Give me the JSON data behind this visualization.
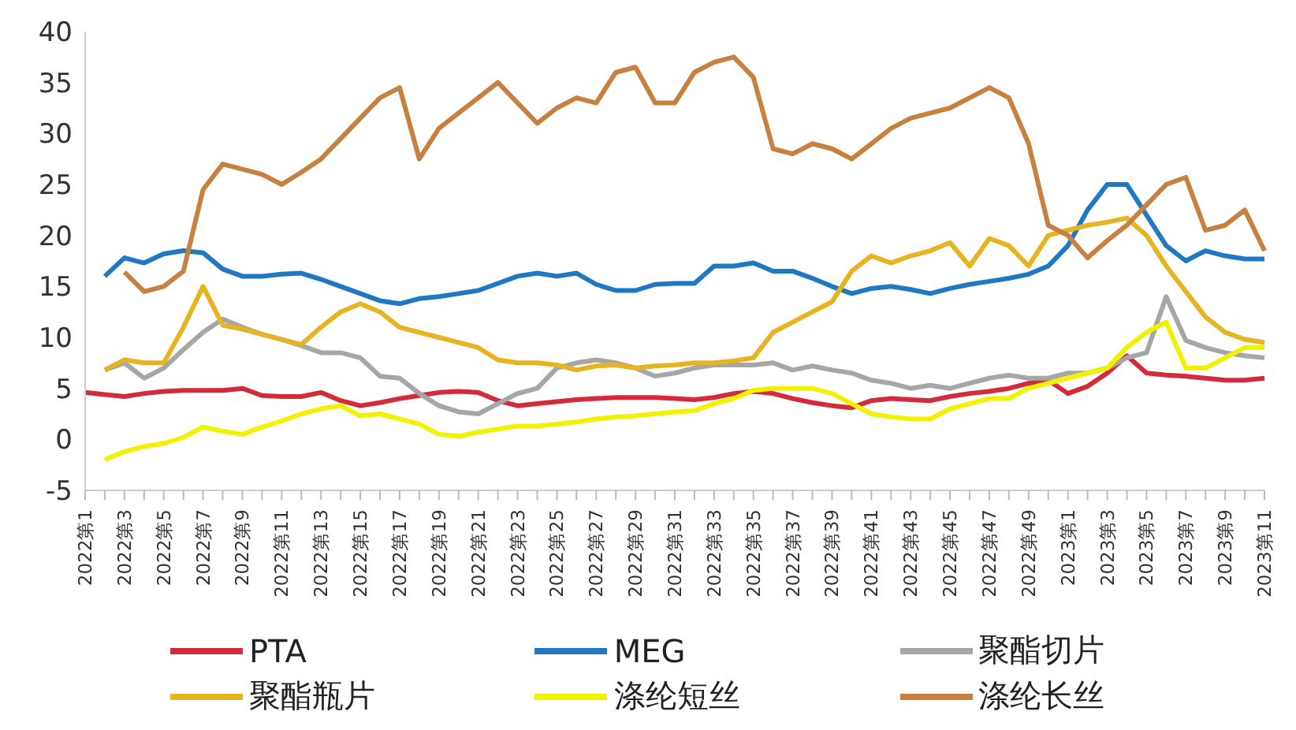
{
  "chart_data": {
    "type": "line",
    "categories": [
      "2022第1",
      null,
      "2022第3",
      null,
      "2022第5",
      null,
      "2022第7",
      null,
      "2022第9",
      null,
      "2022第11",
      null,
      "2022第13",
      null,
      "2022第15",
      null,
      "2022第17",
      null,
      "2022第19",
      null,
      "2022第21",
      null,
      "2022第23",
      null,
      "2022第25",
      null,
      "2022第27",
      null,
      "2022第29",
      null,
      "2022第31",
      null,
      "2022第33",
      null,
      "2022第35",
      null,
      "2022第37",
      null,
      "2022第39",
      null,
      "2022第41",
      null,
      "2022第43",
      null,
      "2022第45",
      null,
      "2022第47",
      null,
      "2022第49",
      null,
      "2023第1",
      null,
      "2023第3",
      null,
      "2023第5",
      null,
      "2023第7",
      null,
      "2023第9",
      null,
      "2023第11"
    ],
    "series": [
      {
        "name": "PTA",
        "color": "#d42a3a",
        "values": [
          4.6,
          4.4,
          4.2,
          4.5,
          4.7,
          4.8,
          4.8,
          4.8,
          5.0,
          4.3,
          4.2,
          4.2,
          4.6,
          3.8,
          3.3,
          3.6,
          4.0,
          4.3,
          4.6,
          4.7,
          4.6,
          3.8,
          3.3,
          3.5,
          3.7,
          3.9,
          4.0,
          4.1,
          4.1,
          4.1,
          4.0,
          3.9,
          4.1,
          4.5,
          4.7,
          4.5,
          4.0,
          3.6,
          3.3,
          3.1,
          3.8,
          4.0,
          3.9,
          3.8,
          4.2,
          4.5,
          4.7,
          5.0,
          5.5,
          5.8,
          4.5,
          5.2,
          6.5,
          8.2,
          6.5,
          6.3,
          6.2,
          6.0,
          5.8,
          5.8,
          6.0
        ]
      },
      {
        "name": "MEG",
        "color": "#1f78c1",
        "values": [
          null,
          16.0,
          17.8,
          17.3,
          18.2,
          18.5,
          18.3,
          16.7,
          16.0,
          16.0,
          16.2,
          16.3,
          15.7,
          15.0,
          14.3,
          13.6,
          13.3,
          13.8,
          14.0,
          14.3,
          14.6,
          15.3,
          16.0,
          16.3,
          16.0,
          16.3,
          15.2,
          14.6,
          14.6,
          15.2,
          15.3,
          15.3,
          17.0,
          17.0,
          17.3,
          16.5,
          16.5,
          15.8,
          15.0,
          14.3,
          14.8,
          15.0,
          14.7,
          14.3,
          14.8,
          15.2,
          15.5,
          15.8,
          16.2,
          17.0,
          19.0,
          22.5,
          25.0,
          25.0,
          22.0,
          19.0,
          17.5,
          18.5,
          18.0,
          17.7,
          17.7
        ]
      },
      {
        "name": "聚酯切片",
        "color": "#a6a6a6",
        "values": [
          null,
          6.8,
          7.5,
          6.0,
          7.0,
          8.8,
          10.5,
          11.8,
          11.0,
          10.3,
          9.8,
          9.2,
          8.5,
          8.5,
          8.0,
          6.2,
          6.0,
          4.5,
          3.3,
          2.7,
          2.5,
          3.5,
          4.5,
          5.0,
          7.0,
          7.5,
          7.8,
          7.5,
          7.0,
          6.2,
          6.5,
          7.0,
          7.3,
          7.3,
          7.3,
          7.5,
          6.8,
          7.2,
          6.8,
          6.5,
          5.8,
          5.5,
          5.0,
          5.3,
          5.0,
          5.5,
          6.0,
          6.3,
          6.0,
          6.0,
          6.5,
          6.5,
          7.0,
          8.0,
          8.5,
          14.0,
          9.7,
          9.0,
          8.5,
          8.2,
          8.0
        ]
      },
      {
        "name": "聚酯瓶片",
        "color": "#e8b321",
        "values": [
          null,
          6.8,
          7.8,
          7.5,
          7.5,
          11.0,
          15.0,
          11.2,
          10.8,
          10.3,
          9.8,
          9.3,
          11.0,
          12.5,
          13.3,
          12.5,
          11.0,
          10.5,
          10.0,
          9.5,
          9.0,
          7.8,
          7.5,
          7.5,
          7.3,
          6.8,
          7.2,
          7.3,
          7.0,
          7.2,
          7.3,
          7.5,
          7.5,
          7.7,
          8.0,
          10.5,
          11.5,
          12.5,
          13.5,
          16.5,
          18.0,
          17.3,
          18.0,
          18.5,
          19.3,
          17.0,
          19.7,
          19.0,
          17.0,
          20.0,
          20.5,
          21.0,
          21.3,
          21.7,
          20.0,
          17.0,
          14.5,
          12.0,
          10.5,
          9.8,
          9.5
        ]
      },
      {
        "name": "涤纶短丝",
        "color": "#f2f200",
        "values": [
          null,
          -2.0,
          -1.2,
          -0.7,
          -0.4,
          0.2,
          1.2,
          0.8,
          0.5,
          1.2,
          1.8,
          2.5,
          3.0,
          3.3,
          2.3,
          2.5,
          2.0,
          1.5,
          0.5,
          0.3,
          0.7,
          1.0,
          1.3,
          1.3,
          1.5,
          1.7,
          2.0,
          2.2,
          2.3,
          2.5,
          2.7,
          2.8,
          3.5,
          4.0,
          4.8,
          5.0,
          5.0,
          5.0,
          4.5,
          3.5,
          2.5,
          2.2,
          2.0,
          2.0,
          3.0,
          3.5,
          4.0,
          4.0,
          5.0,
          5.5,
          6.0,
          6.5,
          7.0,
          9.0,
          10.5,
          11.5,
          7.0,
          7.0,
          8.0,
          9.0,
          9.0
        ]
      },
      {
        "name": "涤纶长丝",
        "color": "#c8803e",
        "values": [
          null,
          null,
          16.4,
          14.5,
          15.0,
          16.5,
          24.5,
          27.0,
          26.5,
          26.0,
          25.0,
          26.2,
          27.5,
          29.5,
          31.5,
          33.5,
          34.5,
          27.5,
          30.5,
          32.0,
          33.5,
          35.0,
          33.0,
          31.0,
          32.5,
          33.5,
          33.0,
          36.0,
          36.5,
          33.0,
          33.0,
          36.0,
          37.0,
          37.5,
          35.5,
          28.5,
          28.0,
          29.0,
          28.5,
          27.5,
          29.0,
          30.5,
          31.5,
          32.0,
          32.5,
          33.5,
          34.5,
          33.5,
          29.0,
          21.0,
          20.0,
          17.8,
          19.5,
          21.0,
          23.0,
          25.0,
          25.7,
          20.5,
          21.0,
          22.5,
          18.5
        ]
      }
    ],
    "ylim": [
      -5,
      40
    ],
    "yticks": [
      -5,
      0,
      5,
      10,
      15,
      20,
      25,
      30,
      35,
      40
    ],
    "grid": false,
    "legend": "bottom",
    "marker": "none",
    "line_style": "solid"
  }
}
